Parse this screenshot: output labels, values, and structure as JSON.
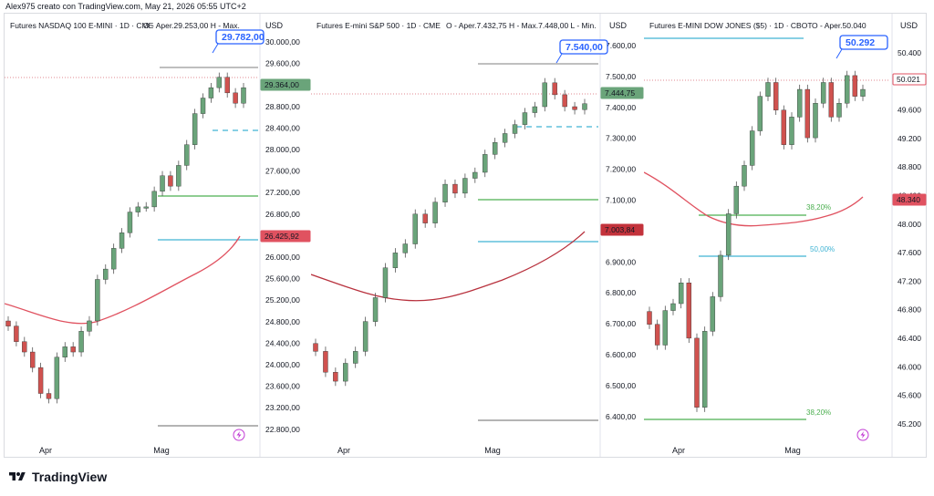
{
  "caption": "Alex975 creato con TradingView.com, May 21, 2026 05:55 UTC+2",
  "brand": "TradingView",
  "colors": {
    "up": "#6aa47a",
    "down": "#d0524f",
    "wick": "#555555",
    "ma": "#e05260",
    "green_line": "#4caf50",
    "cyan_line": "#41b4d4",
    "blue_badge": "#2962ff"
  },
  "panels": [
    {
      "title": "Futures NASDAQ 100 E-MINI · 1D · CME",
      "ohlc": "O - Aper.29.253,00  H - Max.",
      "currency": "USD",
      "axis_labels": [
        "30.000,00",
        "29.600,00",
        "29.200,00",
        "28.800,00",
        "28.400,00",
        "28.000,00",
        "27.600,00",
        "27.200,00",
        "26.800,00",
        "26.400,00",
        "26.000,00",
        "25.600,00",
        "25.200,00",
        "24.800,00",
        "24.400,00",
        "24.000,00",
        "23.600,00",
        "23.200,00",
        "22.800,00"
      ],
      "y_range": [
        22600,
        30200
      ],
      "price_tag": "29.364,00",
      "price_tag_color": "#6aa47a",
      "ma_tag": "26.425,92",
      "ma_tag_color": "#e05260",
      "callout": "29.782,00",
      "months": [
        "Apr",
        "Mag"
      ],
      "fib_labels": []
    },
    {
      "title": "Futures E-mini S&P 500 · 1D · CME",
      "ohlc": "O - Aper.7.432,75  H - Max.7.448,00  L - Min.",
      "currency": "USD",
      "axis_labels": [
        "7.600,00",
        "7.500,00",
        "7.400,00",
        "7.300,00",
        "7.200,00",
        "7.100,00",
        "7.000,00",
        "6.900,00",
        "6.800,00",
        "6.700,00",
        "6.600,00",
        "6.500,00",
        "6.400,00"
      ],
      "y_range": [
        6340,
        7660
      ],
      "price_tag": "7.444,75",
      "price_tag_color": "#6aa47a",
      "ma_tag": "7.003,84",
      "ma_tag_color": "#c3323b",
      "callout": "7.540,00",
      "months": [
        "Apr",
        "Mag"
      ],
      "fib_labels": []
    },
    {
      "title": "Futures E-MINI DOW JONES ($5) · 1D · CBOT",
      "ohlc": "O - Aper.50.040",
      "currency": "USD",
      "axis_labels": [
        "50.400",
        "50.000",
        "49.600",
        "49.200",
        "48.800",
        "48.400",
        "48.000",
        "47.600",
        "47.200",
        "46.800",
        "46.400",
        "46.000",
        "45.600",
        "45.200"
      ],
      "y_range": [
        45000,
        50700
      ],
      "price_tag": "50.021",
      "price_tag_color": "#e05260",
      "ma_tag": "48.340",
      "ma_tag_color": "#e05260",
      "callout": "50.292",
      "months": [
        "Apr",
        "Mag"
      ],
      "fib_labels": [
        "38,20%",
        "50,00%",
        "38,20%"
      ]
    }
  ]
}
